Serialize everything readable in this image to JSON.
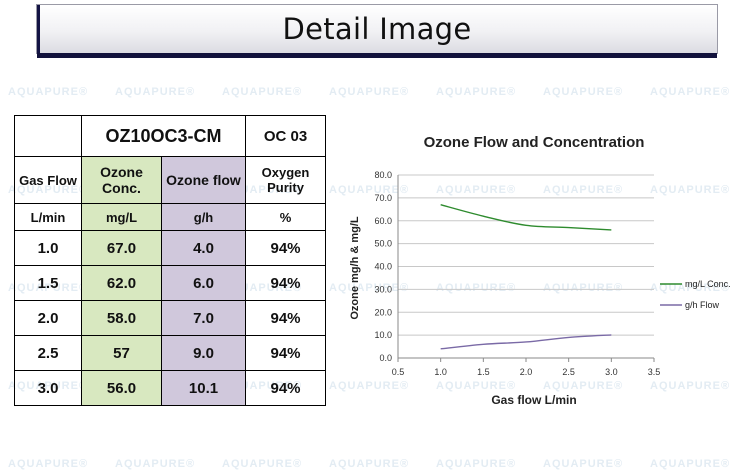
{
  "header": {
    "title": "Detail Image"
  },
  "watermark": {
    "text": "AQUAPURE",
    "mark": "®"
  },
  "table": {
    "model_label": "OZ10OC3-CM",
    "oc_label": "OC 03",
    "headers": [
      "Gas Flow",
      "Ozone Conc.",
      "Ozone flow",
      "Oxygen Purity"
    ],
    "units": [
      "L/min",
      "mg/L",
      "g/h",
      "%"
    ],
    "rows": [
      [
        "1.0",
        "67.0",
        "4.0",
        "94%"
      ],
      [
        "1.5",
        "62.0",
        "6.0",
        "94%"
      ],
      [
        "2.0",
        "58.0",
        "7.0",
        "94%"
      ],
      [
        "2.5",
        "57",
        "9.0",
        "94%"
      ],
      [
        "3.0",
        "56.0",
        "10.1",
        "94%"
      ]
    ],
    "colors": {
      "conc_column": "#d8e8c0",
      "flow_column": "#d0c8dc"
    }
  },
  "chart_data": {
    "type": "line",
    "title": "Ozone Flow and Concentration",
    "xlabel": "Gas flow L/min",
    "ylabel": "Ozone mg/h & mg/L",
    "xlim": [
      0.5,
      3.5
    ],
    "ylim": [
      0,
      80
    ],
    "xticks": [
      "0.5",
      "1.0",
      "1.5",
      "2.0",
      "2.5",
      "3.0",
      "3.5"
    ],
    "yticks": [
      "0.0",
      "10.0",
      "20.0",
      "30.0",
      "40.0",
      "50.0",
      "60.0",
      "70.0",
      "80.0"
    ],
    "x": [
      1.0,
      1.5,
      2.0,
      2.5,
      3.0
    ],
    "grid": true,
    "legend_position": "right",
    "series": [
      {
        "name": "mg/L Conc.",
        "color": "#2e8b2e",
        "values": [
          67.0,
          62.0,
          58.0,
          57,
          56.0
        ]
      },
      {
        "name": "g/h Flow",
        "color": "#7a6aa6",
        "values": [
          4.0,
          6.0,
          7.0,
          9.0,
          10.1
        ]
      }
    ]
  }
}
